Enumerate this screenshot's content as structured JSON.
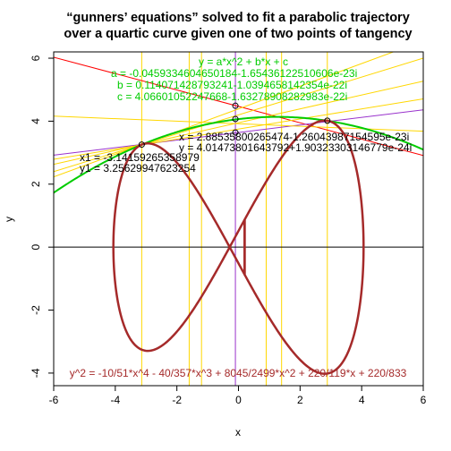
{
  "chart_data": {
    "type": "line",
    "title": "“gunners’ equations” solved to fit a parabolic trajectory",
    "subtitle": "over a quartic curve given one of two points of tangency",
    "xlabel": "x",
    "ylabel": "y",
    "xlim": [
      -6,
      6
    ],
    "ylim": [
      -4.4,
      6.2
    ],
    "x_ticks": [
      "-6",
      "-4",
      "-2",
      "0",
      "2",
      "4",
      "6"
    ],
    "y_ticks": [
      "-4",
      "-2",
      "0",
      "2",
      "4",
      "6"
    ],
    "grid": false,
    "curve_equation": "y^2 = -10/51*x^4 - 40/357*x^3 + 8045/2499*x^2 + 220/119*x + 220/833",
    "curve_color": "#A52A2A",
    "curve_coefficients": [
      -0.19607843,
      -0.11204482,
      3.21928771,
      1.8487395,
      0.26410564
    ],
    "parabola_label": "y = a*x^2 + b*x + c",
    "parabola_coefficients": {
      "a": -0.04593346,
      "b": 0.11407143,
      "c": 4.06601052
    },
    "parabola_color": "#00CC00",
    "a_text": "a =  -0.0459334604650184-1.65436122510606e-23i",
    "b_text": "b =  0.114071428793241-1.0394658142354e-22i",
    "c_text": "c =  4.06601052247668-1.63278908282983e-22i",
    "point1": {
      "x": -3.14159265358979,
      "y": 3.25629947623254
    },
    "point1_text": [
      "x1 =  -3.14159265358979",
      "y1 =  3.25629947623254"
    ],
    "point2": {
      "x": 2.88535800265474,
      "y": 4.01473801643792
    },
    "point2_text": [
      "x =  2.88535800265474-1.26043987154595e-23i",
      "y =  4.01473801643792+1.90323303146779e-24i"
    ],
    "y_intercepts": [
      3.64,
      4.07,
      4.49
    ],
    "vertical_guides": [
      -3.1416,
      -1.6,
      -1.2,
      -0.1,
      0.9,
      1.4,
      2.885
    ],
    "tangent_lines": [
      {
        "color": "#FF0000",
        "slope": -0.26,
        "intercept": 4.47
      },
      {
        "color": "#9932CC",
        "slope": 0.12,
        "intercept": 3.64
      },
      {
        "color": "#FFD700",
        "slope": 0.36,
        "intercept": 4.39
      },
      {
        "color": "#FFD700",
        "slope": 0.3,
        "intercept": 4.2
      },
      {
        "color": "#FFD700",
        "slope": 0.22,
        "intercept": 3.95
      },
      {
        "color": "#FFD700",
        "slope": 0.16,
        "intercept": 3.75
      },
      {
        "color": "#FFD700",
        "slope": -0.04,
        "intercept": 3.92
      }
    ],
    "guide_colors": {
      "yellow": "#FFD700",
      "purple": "#9932CC",
      "label_purple": "#800080"
    }
  }
}
